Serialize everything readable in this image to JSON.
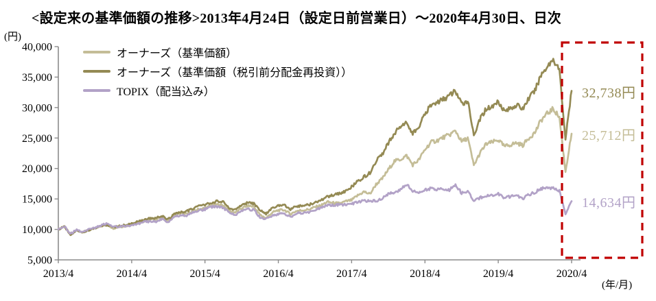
{
  "chart_data": {
    "type": "line",
    "title": "<設定来の基準価額の推移>2013年4月24日（設定日前営業日）～2020年4月30日、日次",
    "ylabel": "(円)",
    "xlabel": "(年/月)",
    "ylim": [
      5000,
      40000
    ],
    "y_ticks": [
      5000,
      10000,
      15000,
      20000,
      25000,
      30000,
      35000,
      40000
    ],
    "x_tick_labels": [
      "2013/4",
      "2014/4",
      "2015/4",
      "2016/4",
      "2017/4",
      "2018/4",
      "2019/4",
      "2020/4"
    ],
    "x_frequency": "monthly points read from daily chart, 2013/4 - 2020/4",
    "grid": false,
    "legend_position": "top-left inside plot",
    "highlight_box_color": "#C00000",
    "axis_color": "#8C8C8C",
    "series": [
      {
        "name": "オーナーズ（基準価額）",
        "color": "#C4BD97",
        "end_label": "25,712円",
        "end_value": 25712,
        "values": [
          10000,
          10450,
          9150,
          9800,
          9550,
          9900,
          10150,
          10600,
          10750,
          10200,
          10400,
          10550,
          10850,
          11100,
          11350,
          11630,
          11730,
          12020,
          11480,
          12370,
          12610,
          12500,
          12980,
          13320,
          13510,
          13850,
          14090,
          13950,
          13030,
          12790,
          13460,
          13900,
          13750,
          12380,
          11860,
          12760,
          13140,
          13190,
          12520,
          13040,
          13140,
          13280,
          13660,
          13940,
          14510,
          14350,
          14260,
          14580,
          14800,
          15570,
          16180,
          15800,
          17400,
          18300,
          19800,
          21200,
          21500,
          22100,
          20600,
          21400,
          23100,
          24300,
          24600,
          25100,
          25500,
          26200,
          24400,
          25000,
          20500,
          22500,
          24000,
          24300,
          24700,
          23600,
          23900,
          24200,
          23800,
          25000,
          25900,
          27900,
          29000,
          29800,
          28400,
          19500,
          25712
        ]
      },
      {
        "name": "オーナーズ（基準価額（税引前分配金再投資））",
        "color": "#948A54",
        "end_label": "32,738円",
        "end_value": 32738,
        "values": [
          10000,
          10450,
          9150,
          9800,
          9550,
          9900,
          10150,
          10600,
          10750,
          10350,
          10550,
          10700,
          11000,
          11250,
          11500,
          11800,
          11900,
          12200,
          11650,
          12550,
          12800,
          12950,
          13450,
          13800,
          14000,
          14350,
          14600,
          14450,
          13500,
          13250,
          13950,
          14400,
          14250,
          13100,
          12550,
          13500,
          13900,
          13950,
          13250,
          13800,
          13900,
          14050,
          14450,
          14750,
          15350,
          15600,
          15850,
          16200,
          17000,
          17900,
          18600,
          19300,
          21200,
          22300,
          24200,
          25800,
          26900,
          27600,
          25700,
          26800,
          28900,
          30400,
          30800,
          31400,
          31900,
          32800,
          30500,
          31200,
          25600,
          28100,
          29800,
          30100,
          31100,
          29400,
          29900,
          30400,
          29800,
          31500,
          32800,
          35300,
          36800,
          37900,
          36200,
          24800,
          32738
        ]
      },
      {
        "name": "TOPIX（配当込み）",
        "color": "#B2A2C7",
        "end_label": "14,634円",
        "end_value": 14634,
        "values": [
          10000,
          10500,
          9300,
          9950,
          9600,
          10050,
          10250,
          10700,
          10950,
          10450,
          10500,
          10550,
          10600,
          10900,
          11200,
          11300,
          11250,
          11700,
          11200,
          12100,
          12250,
          12300,
          12850,
          13150,
          13300,
          13700,
          13750,
          13600,
          12700,
          12350,
          13000,
          13300,
          13200,
          12000,
          11700,
          12300,
          12500,
          12600,
          12000,
          12650,
          12700,
          12800,
          13100,
          13600,
          13950,
          14000,
          14050,
          14100,
          14150,
          14500,
          14700,
          14650,
          14700,
          15050,
          15800,
          16050,
          16550,
          17400,
          16300,
          16100,
          16500,
          16700,
          16500,
          16700,
          16500,
          17200,
          16000,
          16300,
          14600,
          15200,
          15500,
          15550,
          15800,
          15200,
          15400,
          15600,
          15000,
          15700,
          16100,
          16700,
          16800,
          16750,
          16300,
          12400,
          14634
        ]
      }
    ]
  }
}
